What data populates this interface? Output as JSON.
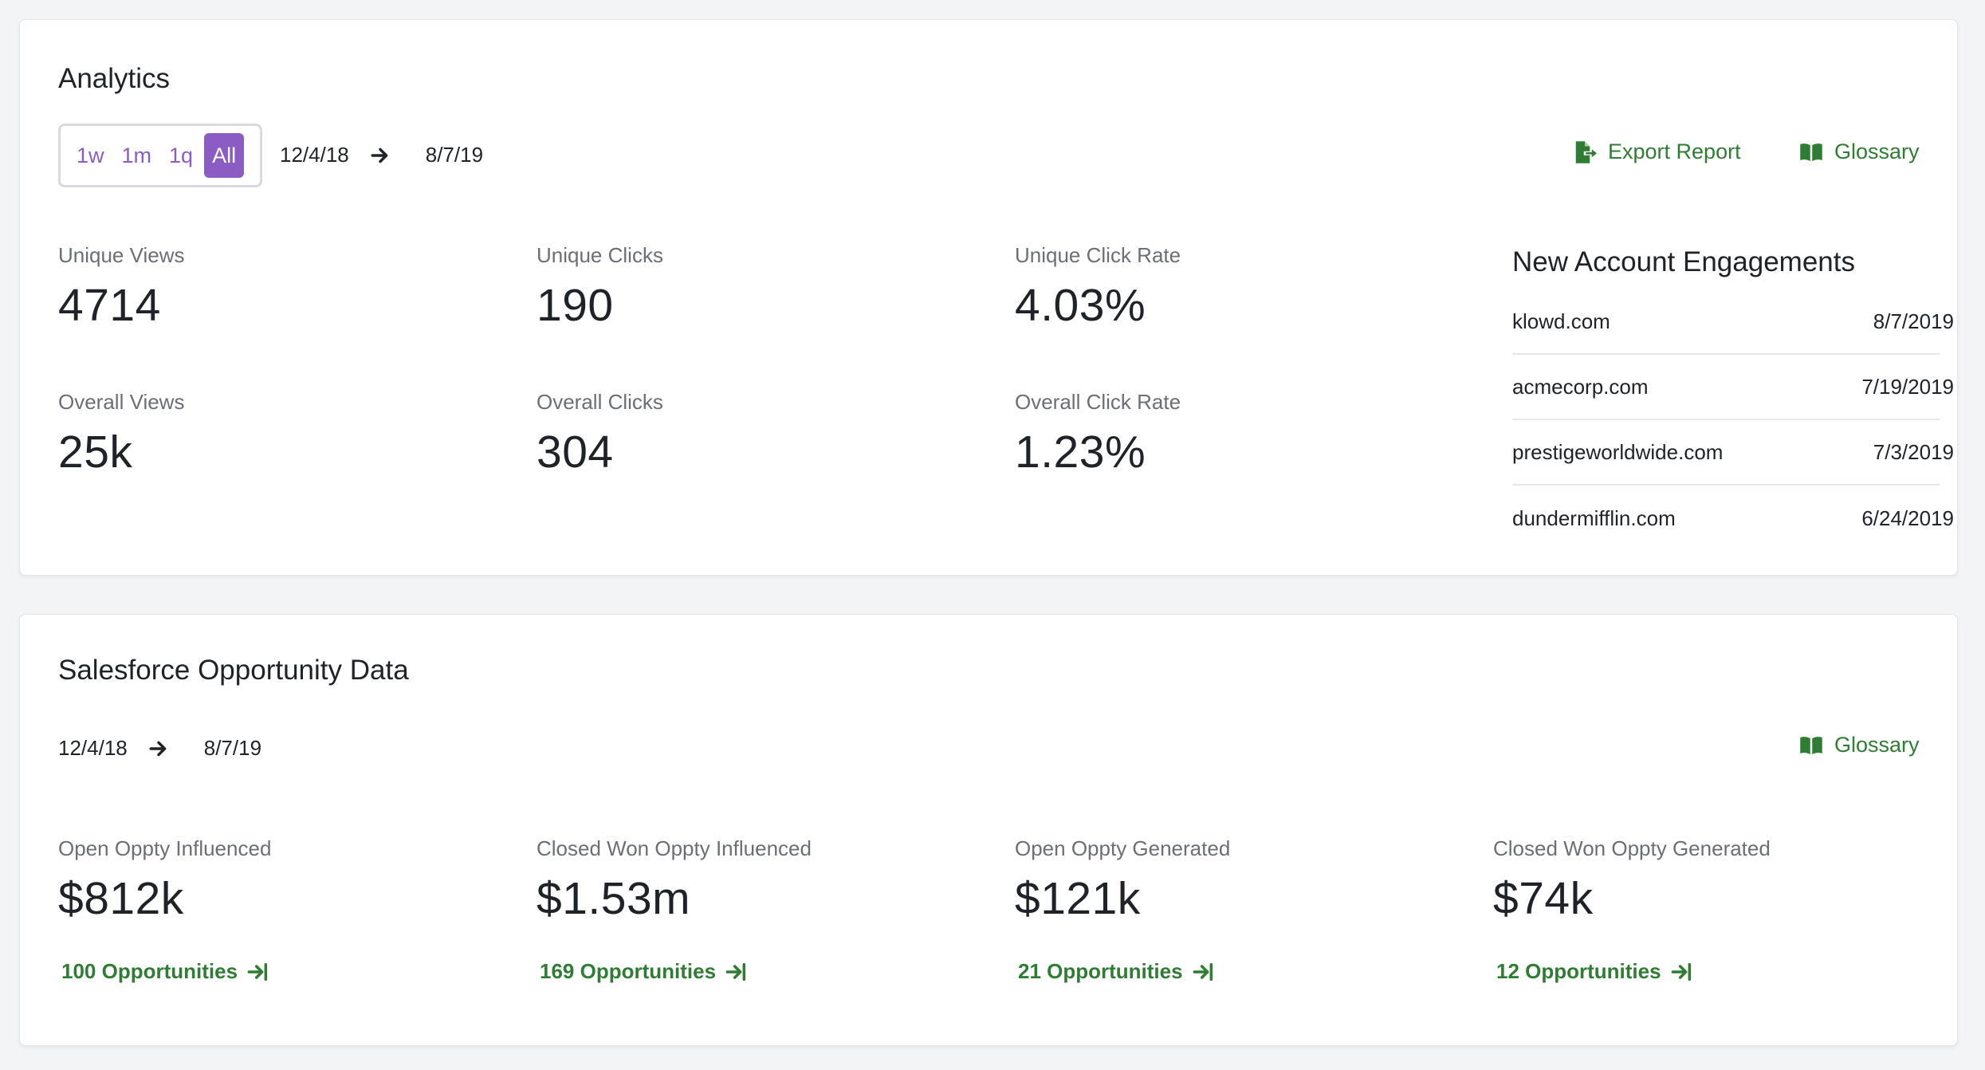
{
  "analytics": {
    "title": "Analytics",
    "ranges": [
      "1w",
      "1m",
      "1q",
      "All"
    ],
    "active_range": "All",
    "date_from": "12/4/18",
    "date_to": "8/7/19",
    "export_label": "Export Report",
    "glossary_label": "Glossary",
    "metrics": {
      "unique_views": {
        "label": "Unique Views",
        "value": "4714"
      },
      "unique_clicks": {
        "label": "Unique Clicks",
        "value": "190"
      },
      "unique_click_rate": {
        "label": "Unique Click Rate",
        "value": "4.03%"
      },
      "overall_views": {
        "label": "Overall Views",
        "value": "25k"
      },
      "overall_clicks": {
        "label": "Overall Clicks",
        "value": "304"
      },
      "overall_click_rate": {
        "label": "Overall Click Rate",
        "value": "1.23%"
      }
    },
    "engagements": {
      "title": "New Account Engagements",
      "rows": [
        {
          "domain": "klowd.com",
          "date": "8/7/2019"
        },
        {
          "domain": "acmecorp.com",
          "date": "7/19/2019"
        },
        {
          "domain": "prestigeworldwide.com",
          "date": "7/3/2019"
        },
        {
          "domain": "dundermifflin.com",
          "date": "6/24/2019"
        }
      ]
    }
  },
  "sfdc": {
    "title": "Salesforce Opportunity Data",
    "date_from": "12/4/18",
    "date_to": "8/7/19",
    "glossary_label": "Glossary",
    "metrics": [
      {
        "label": "Open Oppty Influenced",
        "value": "$812k",
        "link": "100 Opportunities"
      },
      {
        "label": "Closed Won Oppty Influenced",
        "value": "$1.53m",
        "link": "169 Opportunities"
      },
      {
        "label": "Open Oppty Generated",
        "value": "$121k",
        "link": "21 Opportunities"
      },
      {
        "label": "Closed Won Oppty Generated",
        "value": "$74k",
        "link": "12 Opportunities"
      }
    ]
  },
  "icons": {
    "arrow": "arrow-right-icon",
    "export": "file-export-icon",
    "glossary": "book-open-icon",
    "opp_link": "arrow-to-right-icon"
  },
  "colors": {
    "accent_purple": "#8a5cc4",
    "link_green": "#2e7d32"
  }
}
